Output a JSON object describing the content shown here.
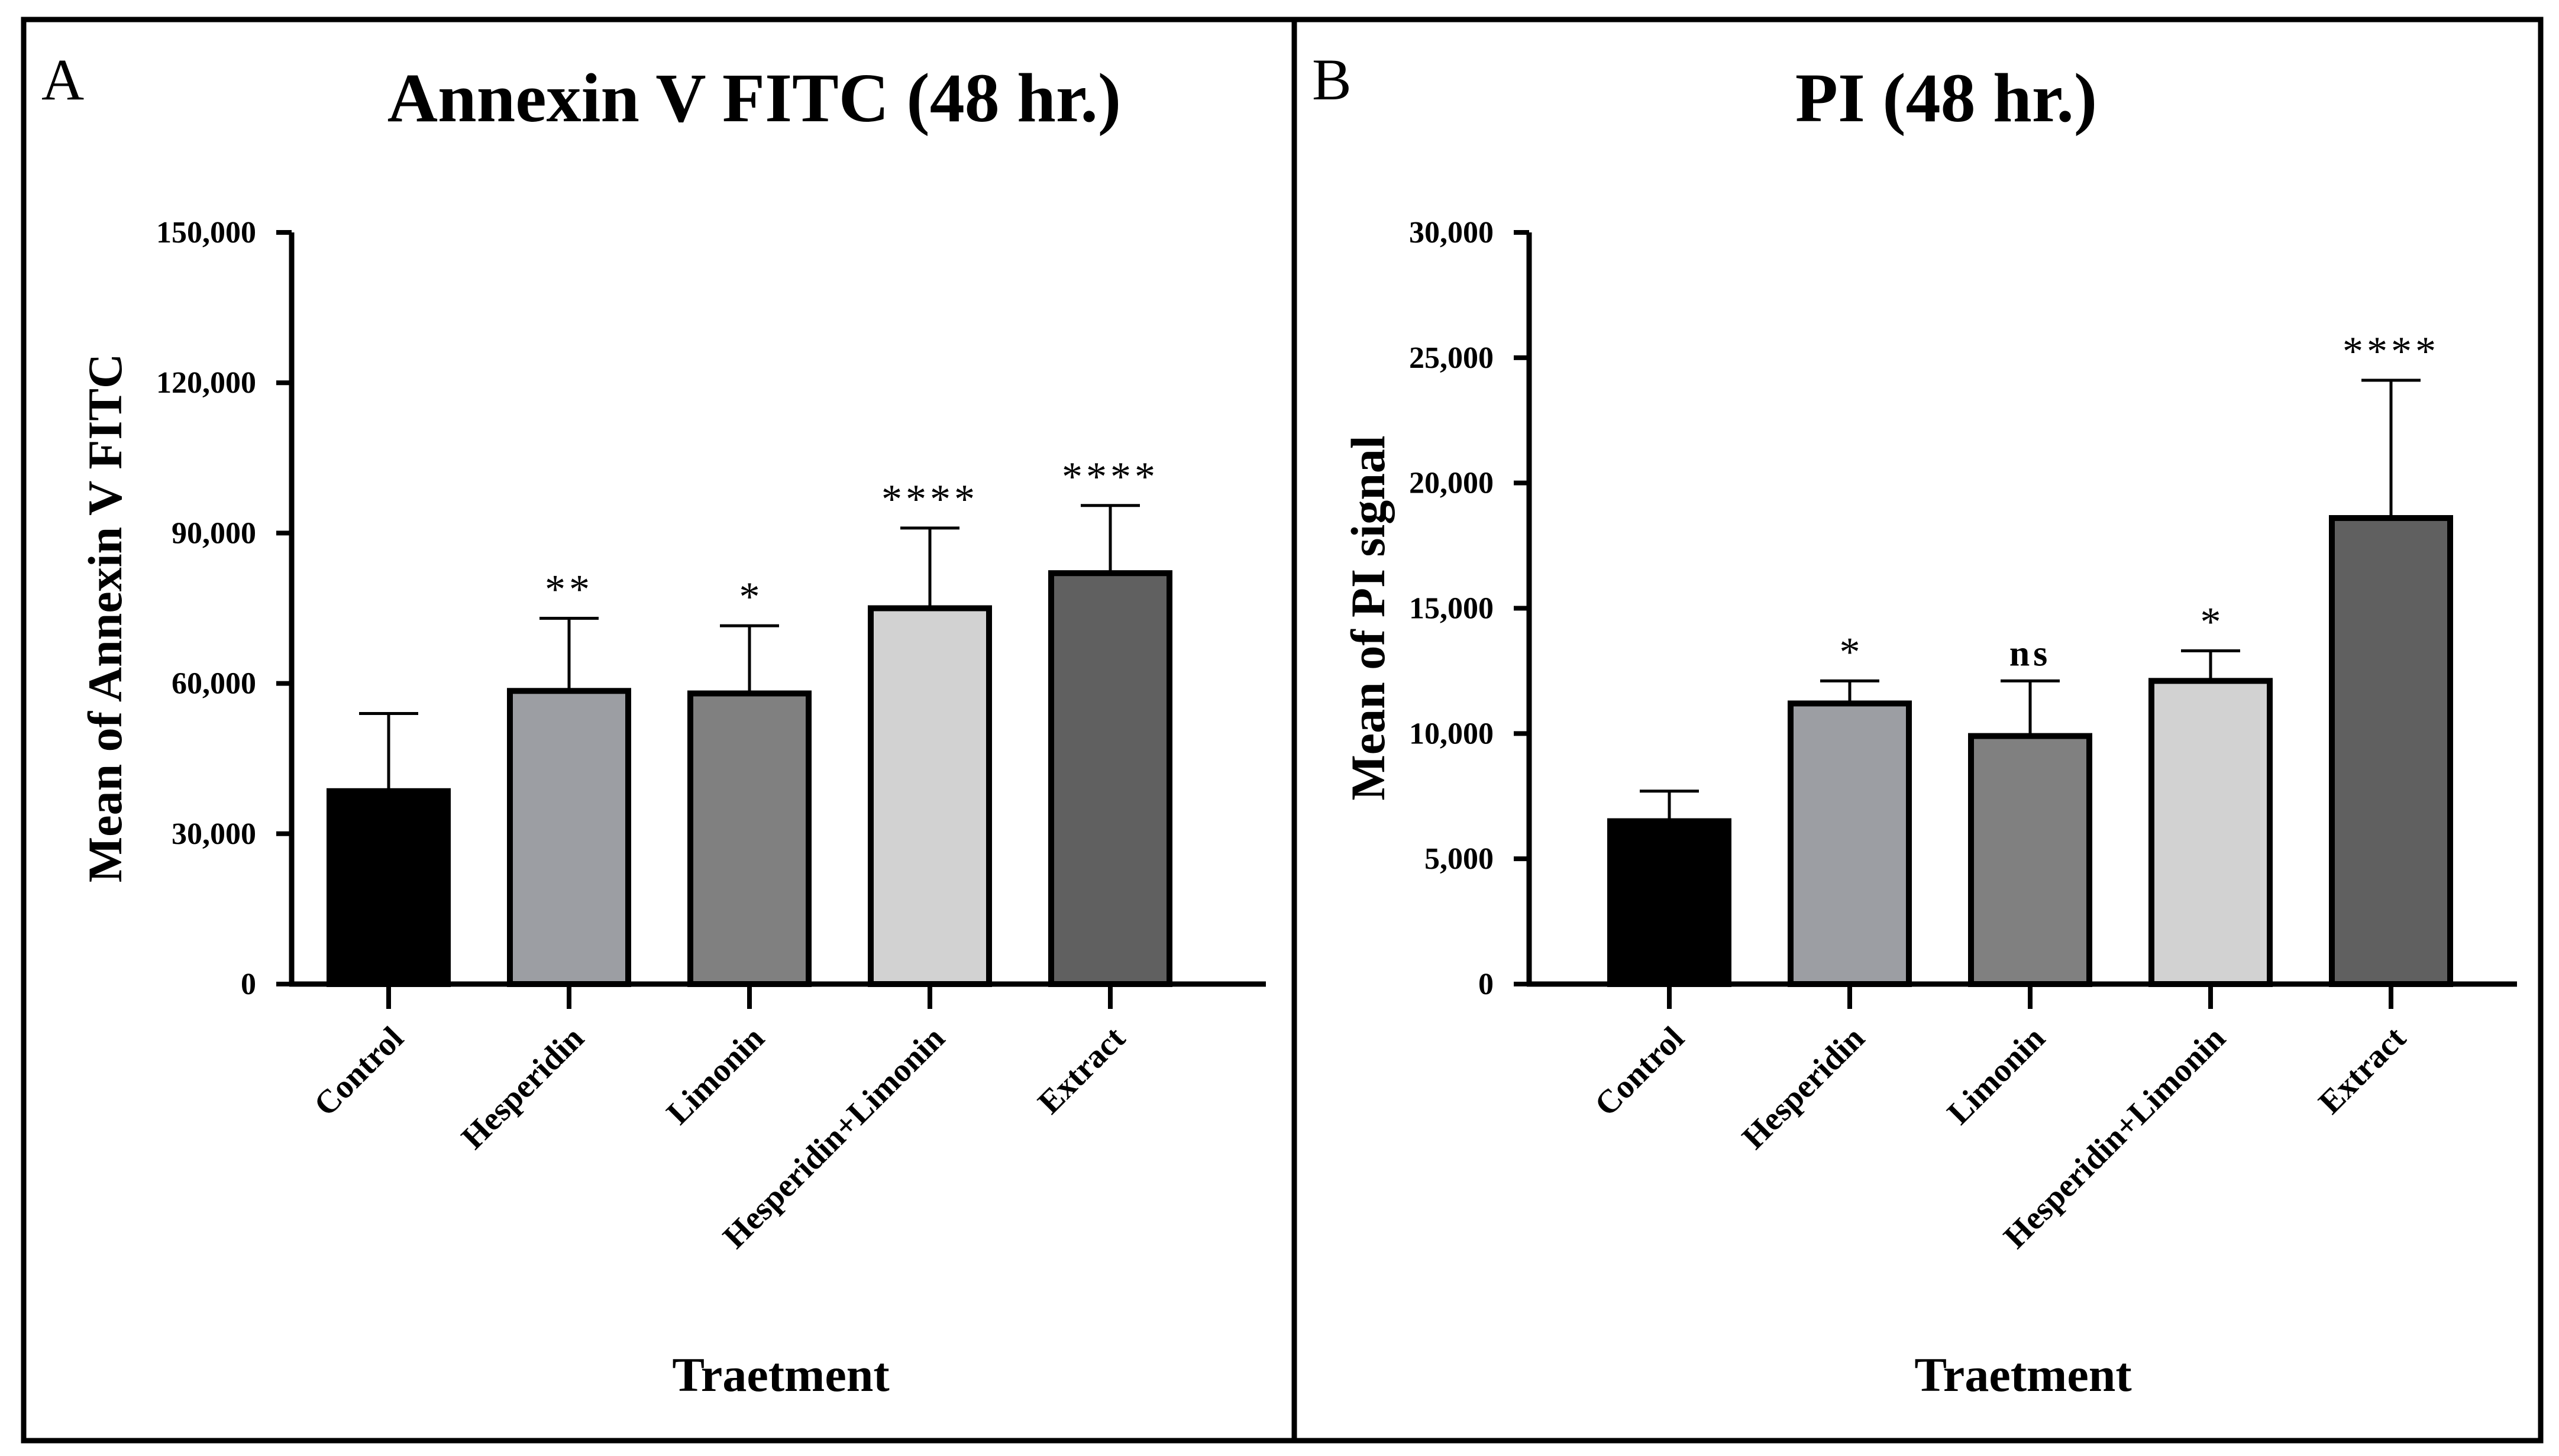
{
  "chart_data": [
    {
      "panel": "A",
      "type": "bar",
      "title": "Annexin V FITC (48 hr.)",
      "xlabel": "Traetment",
      "ylabel": "Mean of Annexin V FITC",
      "ylim": [
        0,
        150000
      ],
      "yticks": [
        0,
        30000,
        60000,
        90000,
        120000,
        150000
      ],
      "ytick_labels": [
        "0",
        "30,000",
        "60,000",
        "90,000",
        "120,000",
        "150,000"
      ],
      "categories": [
        "Control",
        "Hesperidin",
        "Limonin",
        "Hesperidin+Limonin",
        "Extract"
      ],
      "values": [
        38500,
        58500,
        58000,
        75000,
        82000
      ],
      "errors": [
        15500,
        14500,
        13500,
        16000,
        13500
      ],
      "significance": [
        "",
        "**",
        "*",
        "****",
        "****"
      ],
      "colors": [
        "#000000",
        "#9c9ea3",
        "#808080",
        "#d2d2d2",
        "#606060"
      ]
    },
    {
      "panel": "B",
      "type": "bar",
      "title": "PI (48 hr.)",
      "xlabel": "Traetment",
      "ylabel": "Mean of PI signal",
      "ylim": [
        0,
        30000
      ],
      "yticks": [
        0,
        5000,
        10000,
        15000,
        20000,
        25000,
        30000
      ],
      "ytick_labels": [
        "0",
        "5,000",
        "10,000",
        "15,000",
        "20,000",
        "25,000",
        "30,000"
      ],
      "categories": [
        "Control",
        "Hesperidin",
        "Limonin",
        "Hesperidin+Limonin",
        "Extract"
      ],
      "values": [
        6500,
        11200,
        9900,
        12100,
        18600
      ],
      "errors": [
        1200,
        900,
        2200,
        1200,
        5500
      ],
      "significance": [
        "",
        "*",
        "ns",
        "*",
        "****"
      ],
      "colors": [
        "#000000",
        "#9c9ea3",
        "#808080",
        "#d2d2d2",
        "#606060"
      ]
    }
  ]
}
